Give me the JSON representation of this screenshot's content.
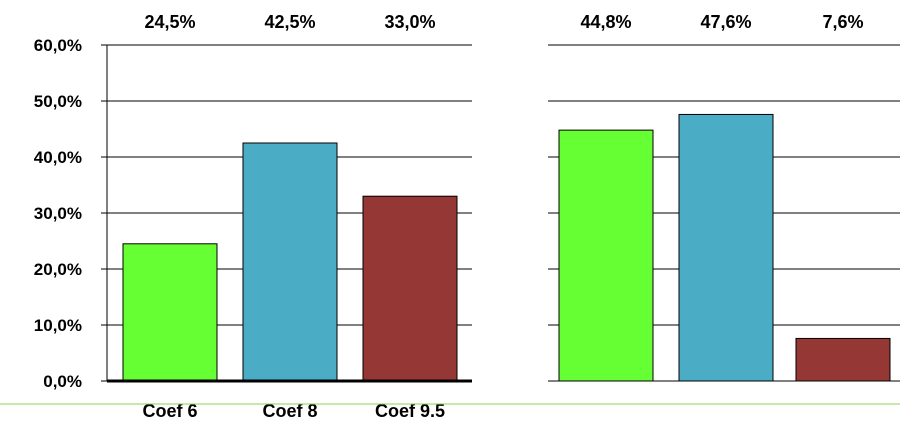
{
  "colors": {
    "green": "#66ff33",
    "blue": "#4bacc6",
    "red": "#953735",
    "axis": "#000000",
    "grid": "#000000",
    "footer_line": "#92d050"
  },
  "chart_data": [
    {
      "type": "bar",
      "categories": [
        "Coef 6",
        "Coef 8",
        "Coef 9.5"
      ],
      "values": [
        24.5,
        42.5,
        33.0
      ],
      "data_labels": [
        "24,5%",
        "42,5%",
        "33,0%"
      ],
      "y_tick_labels": [
        "0,0%",
        "10,0%",
        "20,0%",
        "30,0%",
        "40,0%",
        "50,0%",
        "60,0%"
      ],
      "ylim": [
        0,
        60
      ],
      "grid": true,
      "title": "",
      "xlabel": "",
      "ylabel": ""
    },
    {
      "type": "bar",
      "categories": [
        "",
        "",
        ""
      ],
      "values": [
        44.8,
        47.6,
        7.6
      ],
      "data_labels": [
        "44,8%",
        "47,6%",
        "7,6%"
      ],
      "ylim": [
        0,
        60
      ],
      "grid": true,
      "title": "",
      "xlabel": "",
      "ylabel": ""
    }
  ]
}
